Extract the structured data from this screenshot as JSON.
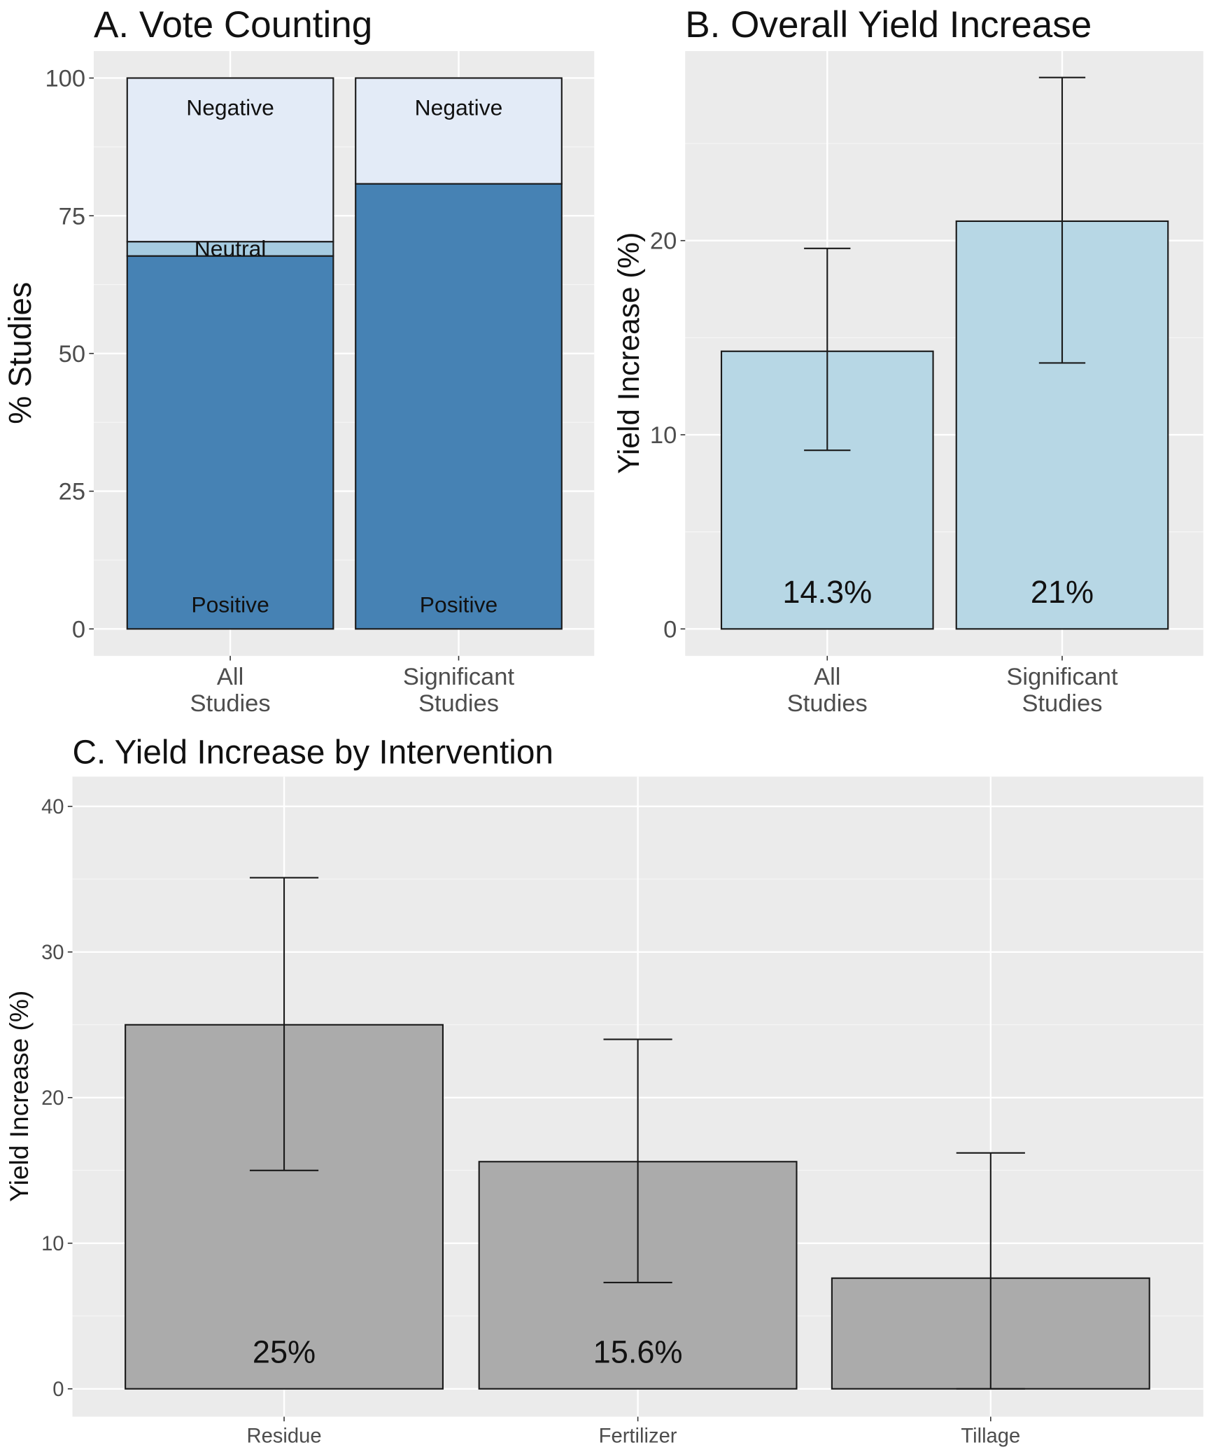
{
  "chart_data": [
    {
      "type": "bar",
      "stacked": true,
      "title": "A. Vote Counting",
      "xlabel": "",
      "ylabel": "% Studies",
      "ylim": [
        0,
        100
      ],
      "yticks": [
        0,
        25,
        50,
        75,
        100
      ],
      "grid": true,
      "categories": [
        "All\nStudies",
        "Significant\nStudies"
      ],
      "series": [
        {
          "name": "Positive",
          "values": [
            67.7,
            80.8
          ],
          "color": "#4682b4"
        },
        {
          "name": "Neutral",
          "values": [
            2.6,
            0
          ],
          "color": "#a6cbe0"
        },
        {
          "name": "Negative",
          "values": [
            29.7,
            19.2
          ],
          "color": "#e3ebf7"
        }
      ],
      "segment_labels": [
        [
          "Positive",
          "Neutral",
          "Negative"
        ],
        [
          "Positive",
          "",
          "Negative"
        ]
      ]
    },
    {
      "type": "bar",
      "title": "B. Overall Yield Increase",
      "xlabel": "",
      "ylabel": "Yield Increase (%)",
      "yticks": [
        0,
        10,
        20
      ],
      "grid": true,
      "categories": [
        "All\nStudies",
        "Significant\nStudies"
      ],
      "values": [
        14.3,
        21
      ],
      "error_low": [
        9.2,
        13.7
      ],
      "error_high": [
        19.6,
        28.4
      ],
      "data_labels": [
        "14.3%",
        "21%"
      ],
      "color": "#b7d7e5"
    },
    {
      "type": "bar",
      "title": "C. Yield Increase by Intervention",
      "xlabel": "",
      "ylabel": "Yield Increase (%)",
      "yticks": [
        0,
        10,
        20,
        30,
        40
      ],
      "grid": true,
      "categories": [
        "Residue",
        "Fertilizer",
        "Tillage"
      ],
      "values": [
        25,
        15.6,
        7.6
      ],
      "error_low": [
        15,
        7.3,
        0
      ],
      "error_high": [
        35.1,
        24,
        16.2
      ],
      "data_labels": [
        "25%",
        "15.6%",
        ""
      ],
      "color": "#ababab"
    }
  ],
  "colors": {
    "panel_bg": "#ebebeb",
    "grid": "#ffffff",
    "outline": "#1a1a1a",
    "tick_text": "#4d4d4d"
  }
}
